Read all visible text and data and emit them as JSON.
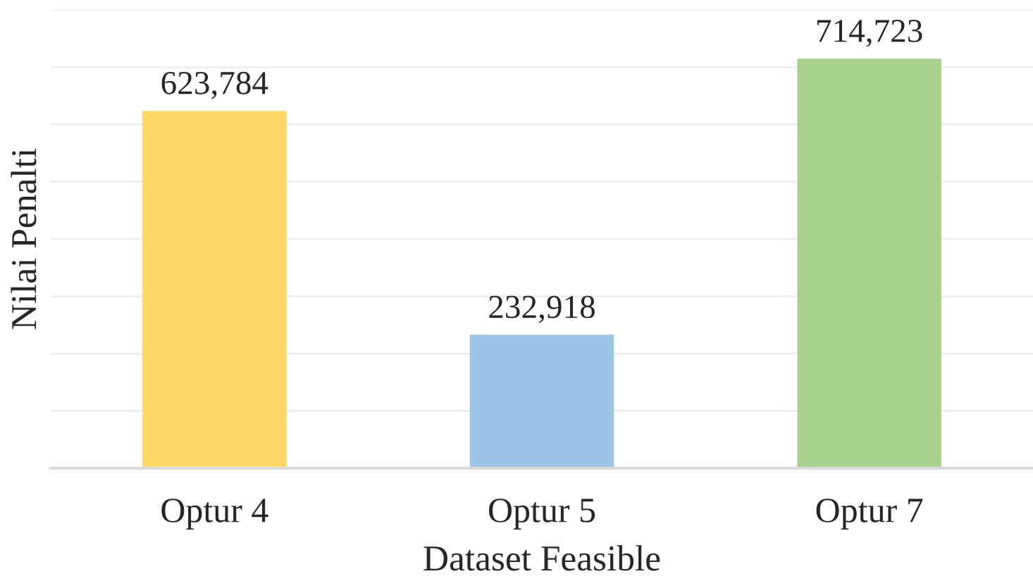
{
  "chart_data": {
    "type": "bar",
    "xlabel": "Dataset Feasible",
    "ylabel": "Nilai Penalti",
    "categories": [
      "Optur 4",
      "Optur 5",
      "Optur 7"
    ],
    "values": [
      623784,
      232918,
      714723
    ],
    "value_labels": [
      "623,784",
      "232,918",
      "714,723"
    ],
    "colors": [
      "#fed766",
      "#9dc3e6",
      "#a9d18e"
    ],
    "ylim": [
      0,
      800000
    ],
    "yticks": [
      {
        "value": 0,
        "label": null
      },
      {
        "value": 100000,
        "label": null
      },
      {
        "value": 200000,
        "label": null
      },
      {
        "value": 300000,
        "label": null
      },
      {
        "value": 400000,
        "label": null
      },
      {
        "value": 500000,
        "label": null
      },
      {
        "value": 600000,
        "label": null
      },
      {
        "value": 700000,
        "label": null
      },
      {
        "value": 800000,
        "label": null
      }
    ],
    "tick_labels": "x",
    "grid": "y",
    "legend": false
  }
}
